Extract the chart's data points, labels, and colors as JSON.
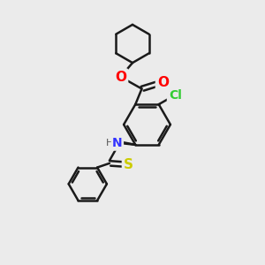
{
  "background_color": "#ebebeb",
  "bond_color": "#1a1a1a",
  "atom_colors": {
    "O": "#ff0000",
    "N": "#3333ff",
    "Cl": "#33cc33",
    "S": "#cccc00"
  },
  "bond_width": 1.8,
  "font_size_atom": 10
}
